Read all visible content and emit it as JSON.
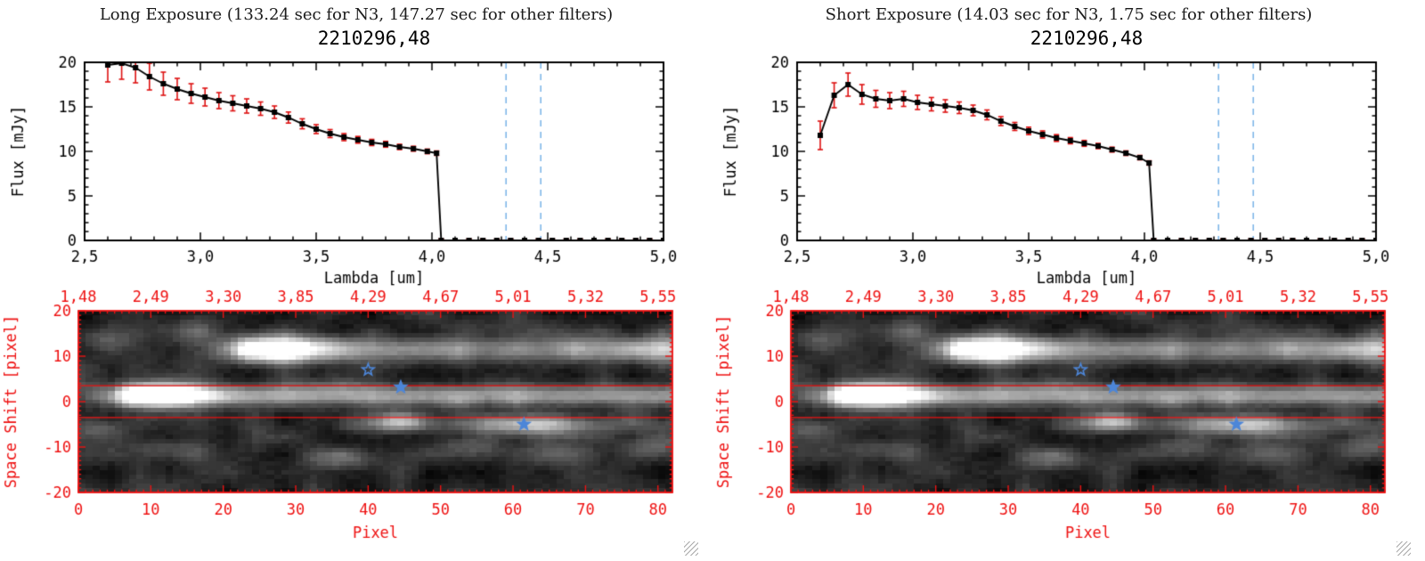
{
  "panels": [
    {
      "title": "Long Exposure (133.24 sec for N3, 147.27 sec for other filters)",
      "plot_title": "2210296,48"
    },
    {
      "title": "Short Exposure (14.03 sec for N3, 1.75 sec for other filters)",
      "plot_title": "2210296,48"
    }
  ],
  "chart_data": [
    {
      "panel": "Long Exposure",
      "spectrum": {
        "type": "line",
        "title": "2210296,48",
        "xlabel": "Lambda [um]",
        "ylabel": "Flux [mJy]",
        "xlim": [
          2.5,
          5.0
        ],
        "ylim": [
          0,
          20
        ],
        "xticks": [
          2.5,
          3.0,
          3.5,
          4.0,
          4.5,
          5.0
        ],
        "xtick_labels": [
          "2,5",
          "3,0",
          "3,5",
          "4,0",
          "4,5",
          "5,0"
        ],
        "yticks": [
          0,
          5,
          10,
          15,
          20
        ],
        "line_color": "#000000",
        "errorbar_color": "#dd1111",
        "dashed_lines_x": [
          4.32,
          4.47
        ],
        "dashed_line_color": "#7fb6e8",
        "x": [
          2.6,
          2.66,
          2.72,
          2.78,
          2.84,
          2.9,
          2.96,
          3.02,
          3.08,
          3.14,
          3.2,
          3.26,
          3.32,
          3.38,
          3.44,
          3.5,
          3.56,
          3.62,
          3.68,
          3.74,
          3.8,
          3.86,
          3.92,
          3.98,
          4.02,
          4.04,
          4.1,
          4.16,
          4.22,
          4.28,
          4.34,
          4.4,
          4.46,
          4.52,
          4.58,
          4.64,
          4.7,
          4.76,
          4.82,
          4.88,
          4.94,
          5.0
        ],
        "y": [
          19.7,
          19.9,
          19.4,
          18.4,
          17.6,
          17.0,
          16.5,
          16.1,
          15.7,
          15.4,
          15.1,
          14.8,
          14.4,
          13.8,
          13.1,
          12.5,
          12.0,
          11.6,
          11.3,
          11.0,
          10.8,
          10.5,
          10.3,
          10.0,
          9.8,
          0,
          0,
          0,
          0,
          0,
          0,
          0,
          0,
          0,
          0,
          0,
          0,
          0,
          0,
          0,
          0,
          0
        ],
        "yerr": [
          1.9,
          1.8,
          1.7,
          1.5,
          1.3,
          1.2,
          1.1,
          1.0,
          0.9,
          0.85,
          0.8,
          0.75,
          0.7,
          0.62,
          0.56,
          0.5,
          0.45,
          0.4,
          0.38,
          0.35,
          0.33,
          0.3,
          0.28,
          0.26,
          0.25,
          0.18,
          0.18,
          0.18,
          0.18,
          0.18,
          0.18,
          0.18,
          0.18,
          0.18,
          0.18,
          0.18,
          0.18,
          0.18,
          0.18,
          0.18,
          0.18,
          0.18
        ]
      },
      "image": {
        "type": "heatmap",
        "xlabel": "Pixel",
        "ylabel": "Space Shift [pixel]",
        "xlim": [
          0,
          82
        ],
        "ylim": [
          -20,
          20
        ],
        "xticks": [
          0,
          10,
          20,
          30,
          40,
          50,
          60,
          70,
          80
        ],
        "yticks": [
          -20,
          -10,
          0,
          10,
          20
        ],
        "top_axis_labels": [
          "1,48",
          "2,49",
          "3,30",
          "3,85",
          "4,29",
          "4,67",
          "5,01",
          "5,32",
          "5,55"
        ],
        "axis_color": "#ee1111",
        "extraction_lines_y": [
          3.5,
          -3.5
        ],
        "stars": [
          {
            "x": 40,
            "y": 7,
            "filled": false
          },
          {
            "x": 44.5,
            "y": 3.2,
            "filled": true
          },
          {
            "x": 61.5,
            "y": -5,
            "filled": true
          }
        ],
        "star_color": "#4d86d8",
        "bands": [
          {
            "name": "main-spectrum-trace",
            "shift": 1.4,
            "sigma": 1.7,
            "x_start": 4,
            "peak_x": 10,
            "peak": 1.05,
            "base": 0.58
          },
          {
            "name": "upper-spectrum-trace",
            "shift": 11.8,
            "sigma": 1.9,
            "x_start": 20,
            "peak_x": 27,
            "peak": 0.92,
            "base": 0.48
          },
          {
            "name": "lower-faint-trace",
            "shift": -5.2,
            "sigma": 1.5,
            "x_start": 34,
            "peak_x": 62,
            "peak": 0.5,
            "base": 0.22
          }
        ],
        "blobs": [
          {
            "x": 44,
            "shift": -4.5,
            "a": 0.5,
            "sx": 2.5,
            "sy": 1.4
          },
          {
            "x": 80,
            "shift": 11.8,
            "a": 0.25,
            "sx": 8,
            "sy": 1.8
          },
          {
            "x": 12,
            "shift": -11,
            "a": 0.22,
            "sx": 3,
            "sy": 1.6
          },
          {
            "x": 36,
            "shift": -13,
            "a": 0.22,
            "sx": 4,
            "sy": 1.6
          },
          {
            "x": 53,
            "shift": -10,
            "a": 0.18,
            "sx": 3,
            "sy": 1.4
          },
          {
            "x": 66,
            "shift": -12,
            "a": 0.26,
            "sx": 4,
            "sy": 1.6
          },
          {
            "x": 79,
            "shift": -10,
            "a": 0.24,
            "sx": 3,
            "sy": 1.8
          },
          {
            "x": 3,
            "shift": 14,
            "a": 0.22,
            "sx": 3,
            "sy": 2
          },
          {
            "x": 14,
            "shift": 16,
            "a": 0.18,
            "sx": 4,
            "sy": 2
          },
          {
            "x": 55,
            "shift": 17,
            "a": 0.12,
            "sx": 5,
            "sy": 1.6
          },
          {
            "x": 2,
            "shift": -6,
            "a": 0.2,
            "sx": 2.5,
            "sy": 1.5
          }
        ],
        "noise_seed": 987654
      }
    },
    {
      "panel": "Short Exposure",
      "spectrum": {
        "type": "line",
        "title": "2210296,48",
        "xlabel": "Lambda [um]",
        "ylabel": "Flux [mJy]",
        "xlim": [
          2.5,
          5.0
        ],
        "ylim": [
          0,
          20
        ],
        "xticks": [
          2.5,
          3.0,
          3.5,
          4.0,
          4.5,
          5.0
        ],
        "xtick_labels": [
          "2,5",
          "3,0",
          "3,5",
          "4,0",
          "4,5",
          "5,0"
        ],
        "yticks": [
          0,
          5,
          10,
          15,
          20
        ],
        "line_color": "#000000",
        "errorbar_color": "#dd1111",
        "dashed_lines_x": [
          4.32,
          4.47
        ],
        "dashed_line_color": "#7fb6e8",
        "x": [
          2.6,
          2.66,
          2.72,
          2.78,
          2.84,
          2.9,
          2.96,
          3.02,
          3.08,
          3.14,
          3.2,
          3.26,
          3.32,
          3.38,
          3.44,
          3.5,
          3.56,
          3.62,
          3.68,
          3.74,
          3.8,
          3.86,
          3.92,
          3.98,
          4.02,
          4.04,
          4.1,
          4.16,
          4.22,
          4.28,
          4.34,
          4.4,
          4.46,
          4.52,
          4.58,
          4.64,
          4.7,
          4.76,
          4.82,
          4.88,
          4.94,
          5.0
        ],
        "y": [
          11.8,
          16.3,
          17.5,
          16.4,
          15.9,
          15.7,
          15.9,
          15.5,
          15.3,
          15.1,
          14.9,
          14.6,
          14.1,
          13.4,
          12.8,
          12.3,
          11.9,
          11.5,
          11.2,
          10.9,
          10.6,
          10.2,
          9.8,
          9.3,
          8.7,
          0,
          0,
          0,
          0,
          0,
          0,
          0,
          0,
          0,
          0,
          0,
          0,
          0,
          0,
          0,
          0,
          0
        ],
        "yerr": [
          1.6,
          1.4,
          1.3,
          1.1,
          0.95,
          0.9,
          0.85,
          0.8,
          0.75,
          0.7,
          0.65,
          0.6,
          0.55,
          0.5,
          0.45,
          0.42,
          0.4,
          0.38,
          0.35,
          0.33,
          0.3,
          0.28,
          0.26,
          0.25,
          0.24,
          0.18,
          0.18,
          0.18,
          0.18,
          0.18,
          0.18,
          0.18,
          0.18,
          0.18,
          0.18,
          0.18,
          0.18,
          0.18,
          0.18,
          0.18,
          0.18,
          0.18
        ]
      },
      "image": {
        "type": "heatmap",
        "xlabel": "Pixel",
        "ylabel": "Space Shift [pixel]",
        "xlim": [
          0,
          82
        ],
        "ylim": [
          -20,
          20
        ],
        "xticks": [
          0,
          10,
          20,
          30,
          40,
          50,
          60,
          70,
          80
        ],
        "yticks": [
          -20,
          -10,
          0,
          10,
          20
        ],
        "top_axis_labels": [
          "1,48",
          "2,49",
          "3,30",
          "3,85",
          "4,29",
          "4,67",
          "5,01",
          "5,32",
          "5,55"
        ],
        "axis_color": "#ee1111",
        "extraction_lines_y": [
          3.5,
          -3.5
        ],
        "stars": [
          {
            "x": 40,
            "y": 7,
            "filled": false
          },
          {
            "x": 44.5,
            "y": 3.2,
            "filled": true
          },
          {
            "x": 61.5,
            "y": -5,
            "filled": true
          }
        ],
        "star_color": "#4d86d8",
        "bands": [
          {
            "name": "main-spectrum-trace",
            "shift": 1.4,
            "sigma": 1.7,
            "x_start": 4,
            "peak_x": 10,
            "peak": 1.05,
            "base": 0.58
          },
          {
            "name": "upper-spectrum-trace",
            "shift": 11.8,
            "sigma": 1.9,
            "x_start": 20,
            "peak_x": 27,
            "peak": 0.92,
            "base": 0.48
          },
          {
            "name": "lower-faint-trace",
            "shift": -5.2,
            "sigma": 1.5,
            "x_start": 34,
            "peak_x": 62,
            "peak": 0.5,
            "base": 0.22
          }
        ],
        "blobs": [
          {
            "x": 44,
            "shift": -4.5,
            "a": 0.5,
            "sx": 2.5,
            "sy": 1.4
          },
          {
            "x": 80,
            "shift": 11.8,
            "a": 0.25,
            "sx": 8,
            "sy": 1.8
          },
          {
            "x": 12,
            "shift": -11,
            "a": 0.22,
            "sx": 3,
            "sy": 1.6
          },
          {
            "x": 36,
            "shift": -13,
            "a": 0.22,
            "sx": 4,
            "sy": 1.6
          },
          {
            "x": 53,
            "shift": -10,
            "a": 0.18,
            "sx": 3,
            "sy": 1.4
          },
          {
            "x": 66,
            "shift": -12,
            "a": 0.26,
            "sx": 4,
            "sy": 1.6
          },
          {
            "x": 79,
            "shift": -10,
            "a": 0.24,
            "sx": 3,
            "sy": 1.8
          },
          {
            "x": 3,
            "shift": 14,
            "a": 0.22,
            "sx": 3,
            "sy": 2
          },
          {
            "x": 14,
            "shift": 16,
            "a": 0.18,
            "sx": 4,
            "sy": 2
          },
          {
            "x": 55,
            "shift": 17,
            "a": 0.12,
            "sx": 5,
            "sy": 1.6
          },
          {
            "x": 2,
            "shift": -6,
            "a": 0.2,
            "sx": 2.5,
            "sy": 1.5
          }
        ],
        "noise_seed": 987654
      }
    }
  ]
}
